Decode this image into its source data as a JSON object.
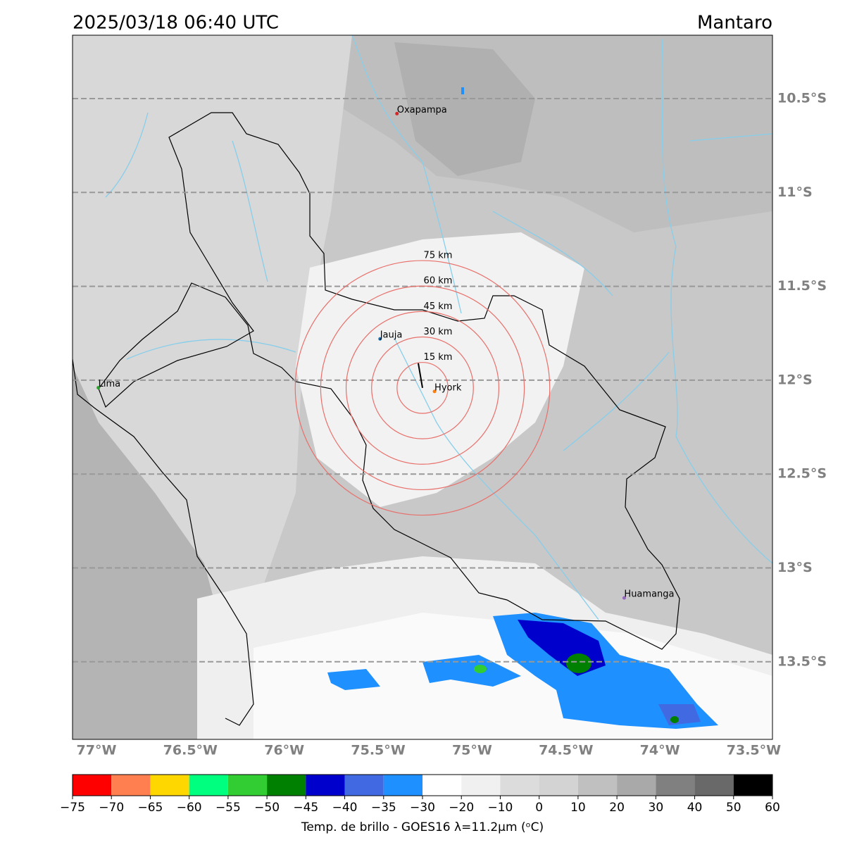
{
  "map": {
    "title": "2025/03/18 06:40 UTC",
    "region": "Mantaro",
    "lat_lines": [
      {
        "value": -10.5,
        "label": "10.5°S"
      },
      {
        "value": -11,
        "label": "11°S"
      },
      {
        "value": -11.5,
        "label": "11.5°S"
      },
      {
        "value": -12,
        "label": "12°S"
      },
      {
        "value": -12.5,
        "label": "12.5°S"
      },
      {
        "value": -13,
        "label": "13°S"
      },
      {
        "value": -13.5,
        "label": "13.5°S"
      }
    ],
    "lon_labels": [
      {
        "value": -77,
        "label": "77°W"
      },
      {
        "value": -76.5,
        "label": "76.5°W"
      },
      {
        "value": -76,
        "label": "76°W"
      },
      {
        "value": -75.5,
        "label": "75.5°W"
      },
      {
        "value": -75,
        "label": "75°W"
      },
      {
        "value": -74.5,
        "label": "74.5°W"
      },
      {
        "value": -74,
        "label": "74°W"
      },
      {
        "value": -73.5,
        "label": "73.5°W"
      }
    ],
    "cities": [
      {
        "name": "Oxapampa",
        "lon": -75.4,
        "lat": -10.58,
        "color": "#d62728"
      },
      {
        "name": "Jauja",
        "lon": -75.49,
        "lat": -11.78,
        "color": "#1f77b4"
      },
      {
        "name": "Hyork",
        "lon": -75.2,
        "lat": -12.06,
        "color": "#ff7f0e"
      },
      {
        "name": "Lima",
        "lon": -76.99,
        "lat": -12.04,
        "color": "#2ca02c"
      },
      {
        "name": "Huamanga",
        "lon": -74.19,
        "lat": -13.16,
        "color": "#9467bd"
      }
    ],
    "rings": {
      "center_lon": -75.264,
      "center_lat": -12.041,
      "color": "#e8706b",
      "items": [
        {
          "radius_km": 15,
          "label": "15 km"
        },
        {
          "radius_km": 30,
          "label": "30 km"
        },
        {
          "radius_km": 45,
          "label": "45 km"
        },
        {
          "radius_km": 60,
          "label": "60 km"
        },
        {
          "radius_km": 75,
          "label": "75 km"
        }
      ]
    },
    "colorbar": {
      "label": "Temp. de brillo - GOES16 λ=11.2μm (ᵒC)",
      "ticks": [
        {
          "value": -75,
          "label": "−75"
        },
        {
          "value": -70,
          "label": "−70"
        },
        {
          "value": -65,
          "label": "−65"
        },
        {
          "value": -60,
          "label": "−60"
        },
        {
          "value": -55,
          "label": "−55"
        },
        {
          "value": -50,
          "label": "−50"
        },
        {
          "value": -45,
          "label": "−45"
        },
        {
          "value": -40,
          "label": "−40"
        },
        {
          "value": -35,
          "label": "−35"
        },
        {
          "value": -30,
          "label": "−30"
        },
        {
          "value": -20,
          "label": "−20"
        },
        {
          "value": -10,
          "label": "−10"
        },
        0,
        10,
        20,
        30,
        40,
        50,
        60
      ],
      "colors": [
        "#ff0000",
        "#ff7f50",
        "#ffd700",
        "#00ff7f",
        "#32cd32",
        "#008000",
        "#0000cd",
        "#4169e1",
        "#1e90ff",
        "#ffffff",
        "#f0f0f0",
        "#dcdcdc",
        "#d3d3d3",
        "#c0c0c0",
        "#a9a9a9",
        "#808080",
        "#696969",
        "#000000"
      ]
    }
  }
}
